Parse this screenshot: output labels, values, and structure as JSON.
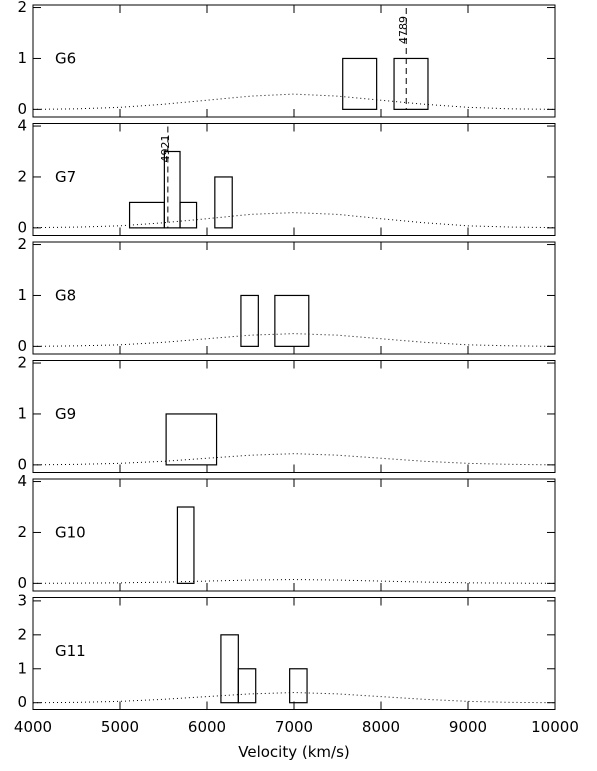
{
  "chart_data": [
    {
      "type": "histogram",
      "title": "G6",
      "bins": [
        7560,
        7950,
        8150,
        8540
      ],
      "counts": [
        1,
        0,
        1
      ],
      "curve": {
        "x": [
          4000,
          4500,
          5000,
          5500,
          6000,
          6500,
          7000,
          7500,
          8000,
          8500,
          9000,
          9500,
          10000
        ],
        "y": [
          0,
          0.01,
          0.04,
          0.1,
          0.18,
          0.26,
          0.3,
          0.26,
          0.18,
          0.1,
          0.04,
          0.01,
          0
        ]
      },
      "annotation": {
        "text": "4789",
        "x": 8290
      },
      "xlim": [
        4000,
        10000
      ],
      "xticks": [
        4000,
        5000,
        6000,
        7000,
        8000,
        9000,
        10000
      ],
      "ylim": [
        -0.15,
        2.05
      ],
      "yticks": [
        0,
        1,
        2
      ]
    },
    {
      "type": "histogram",
      "title": "G7",
      "bins": [
        5110,
        5510,
        5690,
        5880,
        6090,
        6290
      ],
      "counts": [
        1,
        3,
        1,
        0,
        2
      ],
      "curve": {
        "x": [
          4000,
          4500,
          5000,
          5500,
          6000,
          6500,
          7000,
          7500,
          8000,
          8500,
          9000,
          9500,
          10000
        ],
        "y": [
          0.01,
          0.03,
          0.08,
          0.2,
          0.36,
          0.53,
          0.6,
          0.53,
          0.36,
          0.2,
          0.08,
          0.03,
          0.01
        ]
      },
      "annotation": {
        "text": "4921",
        "x": 5550
      },
      "xlim": [
        4000,
        10000
      ],
      "xticks": [
        4000,
        5000,
        6000,
        7000,
        8000,
        9000,
        10000
      ],
      "ylim": [
        -0.3,
        4.1
      ],
      "yticks": [
        0,
        2,
        4
      ]
    },
    {
      "type": "histogram",
      "title": "G8",
      "bins": [
        6390,
        6590,
        6780,
        7170
      ],
      "counts": [
        1,
        0,
        1
      ],
      "curve": {
        "x": [
          4000,
          4500,
          5000,
          5500,
          6000,
          6500,
          7000,
          7500,
          8000,
          8500,
          9000,
          9500,
          10000
        ],
        "y": [
          0,
          0.01,
          0.03,
          0.08,
          0.15,
          0.22,
          0.25,
          0.22,
          0.15,
          0.08,
          0.03,
          0.01,
          0
        ]
      },
      "xlim": [
        4000,
        10000
      ],
      "xticks": [
        4000,
        5000,
        6000,
        7000,
        8000,
        9000,
        10000
      ],
      "ylim": [
        -0.15,
        2.05
      ],
      "yticks": [
        0,
        1,
        2
      ]
    },
    {
      "type": "histogram",
      "title": "G9",
      "bins": [
        5530,
        6110
      ],
      "counts": [
        1
      ],
      "curve": {
        "x": [
          4000,
          4500,
          5000,
          5500,
          6000,
          6500,
          7000,
          7500,
          8000,
          8500,
          9000,
          9500,
          10000
        ],
        "y": [
          0,
          0.01,
          0.03,
          0.07,
          0.13,
          0.19,
          0.22,
          0.19,
          0.13,
          0.07,
          0.03,
          0.01,
          0
        ]
      },
      "xlim": [
        4000,
        10000
      ],
      "xticks": [
        4000,
        5000,
        6000,
        7000,
        8000,
        9000,
        10000
      ],
      "ylim": [
        -0.15,
        2.05
      ],
      "yticks": [
        0,
        1,
        2
      ]
    },
    {
      "type": "histogram",
      "title": "G10",
      "bins": [
        5660,
        5850
      ],
      "counts": [
        3
      ],
      "curve": {
        "x": [
          4000,
          4500,
          5000,
          5500,
          6000,
          6500,
          7000,
          7500,
          8000,
          8500,
          9000,
          9500,
          10000
        ],
        "y": [
          0,
          0.01,
          0.02,
          0.05,
          0.09,
          0.13,
          0.15,
          0.13,
          0.09,
          0.05,
          0.02,
          0.01,
          0
        ]
      },
      "xlim": [
        4000,
        10000
      ],
      "xticks": [
        4000,
        5000,
        6000,
        7000,
        8000,
        9000,
        10000
      ],
      "ylim": [
        -0.3,
        4.1
      ],
      "yticks": [
        0,
        2,
        4
      ]
    },
    {
      "type": "histogram",
      "title": "G11",
      "bins": [
        6160,
        6360,
        6560,
        6950,
        7150
      ],
      "counts": [
        2,
        1,
        0,
        1
      ],
      "curve": {
        "x": [
          4000,
          4500,
          5000,
          5500,
          6000,
          6500,
          7000,
          7500,
          8000,
          8500,
          9000,
          9500,
          10000
        ],
        "y": [
          0,
          0.01,
          0.04,
          0.1,
          0.18,
          0.26,
          0.3,
          0.26,
          0.18,
          0.1,
          0.04,
          0.01,
          0
        ]
      },
      "xlim": [
        4000,
        10000
      ],
      "xticks": [
        4000,
        5000,
        6000,
        7000,
        8000,
        9000,
        10000
      ],
      "ylim": [
        -0.2,
        3.1
      ],
      "yticks": [
        0,
        1,
        2,
        3
      ],
      "xlabel": "Velocity (km/s)"
    }
  ]
}
